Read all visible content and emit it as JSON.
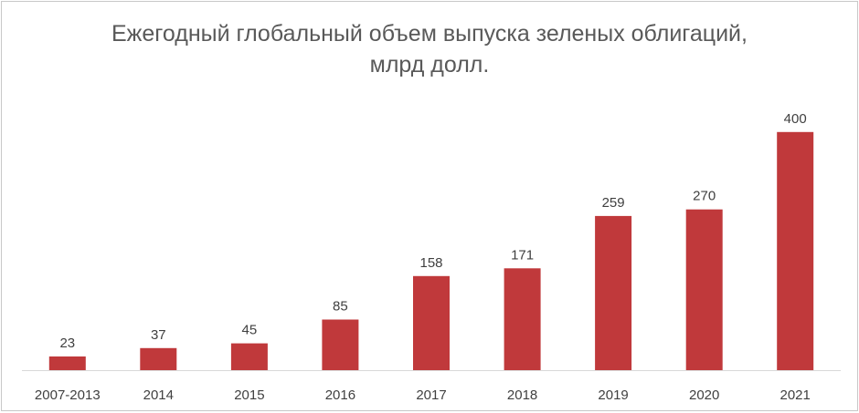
{
  "chart_data": {
    "type": "bar",
    "title": "Ежегодный глобальный объем выпуска зеленых облигаций,",
    "subtitle": "млрд долл.",
    "categories": [
      "2007-2013",
      "2014",
      "2015",
      "2016",
      "2017",
      "2018",
      "2019",
      "2020",
      "2021"
    ],
    "values": [
      23,
      37,
      45,
      85,
      158,
      171,
      259,
      270,
      400
    ],
    "xlabel": "",
    "ylabel": "",
    "ylim": [
      0,
      420
    ],
    "grid": false,
    "legend": "none",
    "data_labels": true,
    "bar_color": "#C0393B"
  }
}
